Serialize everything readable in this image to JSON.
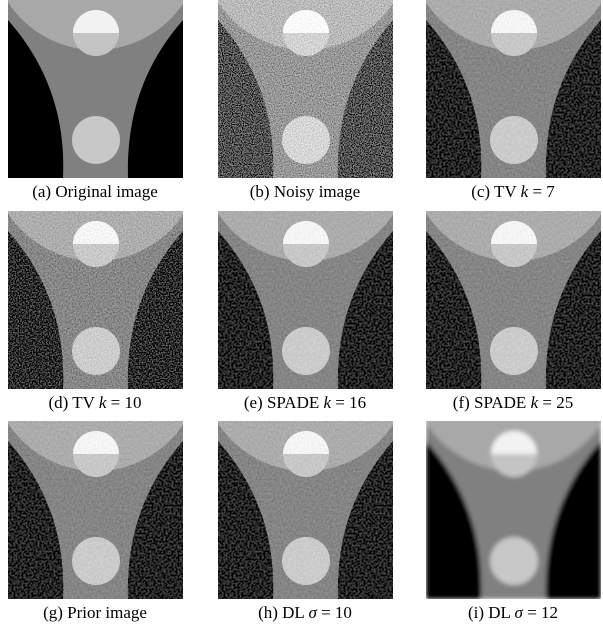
{
  "panels": [
    {
      "caption": "(a) Original image"
    },
    {
      "caption": "(b) Noisy image"
    },
    {
      "caption": "(c) TV",
      "var": "k",
      "rhs": "= 7"
    },
    {
      "caption": "(d) TV",
      "var": "k",
      "rhs": "= 10"
    },
    {
      "caption": "(e) SPADE",
      "var": "k",
      "rhs": "= 16"
    },
    {
      "caption": "(f) SPADE",
      "var": "k",
      "rhs": "= 25"
    },
    {
      "caption": "(g) Prior image"
    },
    {
      "caption": "(h) DL",
      "var": "σ",
      "rhs": "= 10"
    },
    {
      "caption": "(i) DL",
      "var": "σ",
      "rhs": "= 12"
    }
  ]
}
